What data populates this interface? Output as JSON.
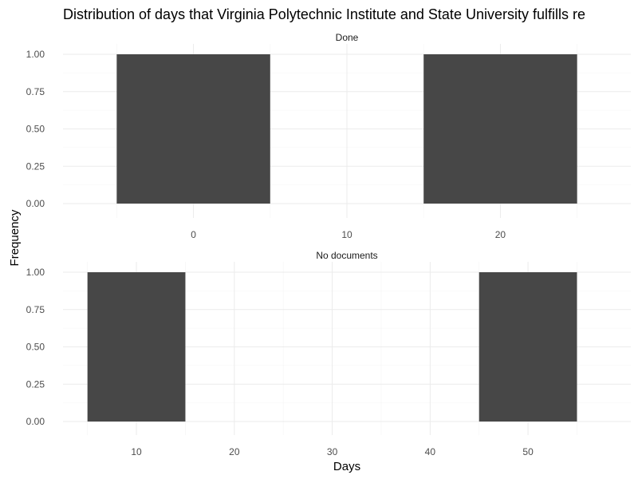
{
  "chart_data": {
    "type": "bar",
    "title": "Distribution of days that Virginia Polytechnic Institute and State University fulfills re",
    "xlabel": "Days",
    "ylabel": "Frequency",
    "grid": true,
    "panels": [
      {
        "strip": "Done",
        "xlim": [
          -8.5,
          28.5
        ],
        "xticks": [
          0,
          10,
          20
        ],
        "xminor": [
          -5,
          5,
          15,
          25
        ],
        "ylim": [
          0,
          1
        ],
        "yticks": [
          "0.00",
          "0.25",
          "0.50",
          "0.75",
          "1.00"
        ],
        "bars": [
          {
            "x0": -5,
            "x1": 5,
            "value": 1
          },
          {
            "x0": 15,
            "x1": 25,
            "value": 1
          }
        ]
      },
      {
        "strip": "No documents",
        "xlim": [
          2.5,
          60.5
        ],
        "xticks": [
          10,
          20,
          30,
          40,
          50
        ],
        "xminor": [
          5,
          15,
          25,
          35,
          45,
          55
        ],
        "ylim": [
          0,
          1
        ],
        "yticks": [
          "0.00",
          "0.25",
          "0.50",
          "0.75",
          "1.00"
        ],
        "bars": [
          {
            "x0": 5,
            "x1": 15,
            "value": 1
          },
          {
            "x0": 45,
            "x1": 55,
            "value": 1
          }
        ]
      }
    ]
  }
}
